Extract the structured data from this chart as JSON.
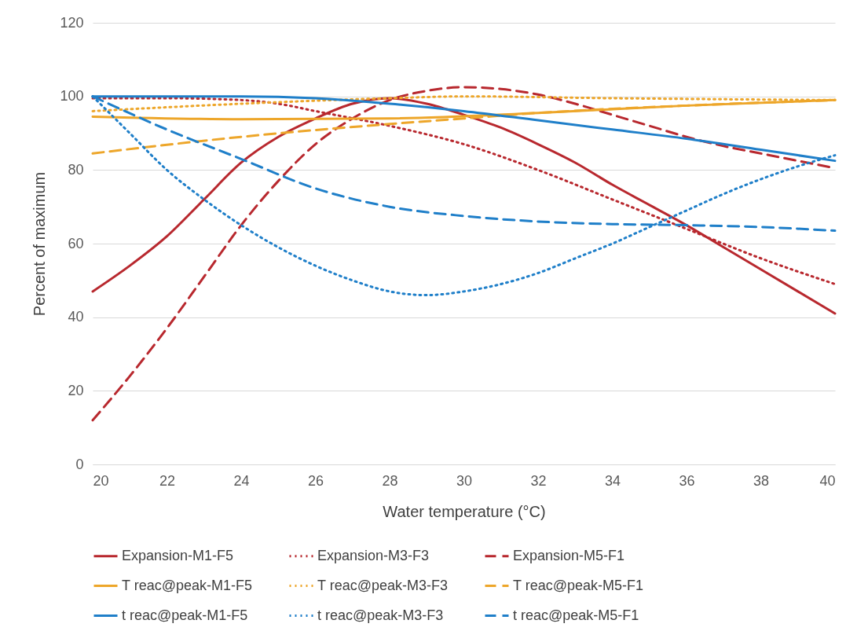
{
  "chart_data": {
    "type": "line",
    "xlabel": "Water temperature (°C)",
    "ylabel": "Percent of maximum",
    "xlim": [
      20,
      40
    ],
    "xticks": [
      20,
      22,
      24,
      26,
      28,
      30,
      32,
      34,
      36,
      38,
      40
    ],
    "ylim": [
      0,
      120
    ],
    "yticks": [
      0,
      20,
      40,
      60,
      80,
      100,
      120
    ],
    "grid": "y",
    "legend": "bottom",
    "marker": "none",
    "series": [
      {
        "name": "Expansion-M1-F5",
        "color": "#b8282e",
        "line_style": "solid",
        "x": [
          20,
          21,
          22,
          23,
          24,
          25,
          26,
          27,
          28,
          29,
          30,
          31,
          32,
          33,
          34,
          35,
          36,
          37,
          38,
          39,
          40
        ],
        "values": [
          47,
          54,
          62,
          72,
          82,
          89,
          94,
          98,
          99.5,
          98,
          95,
          91.5,
          87,
          82,
          76,
          70.5,
          65,
          59,
          53,
          47,
          41
        ]
      },
      {
        "name": "Expansion-M3-F3",
        "color": "#b8282e",
        "line_style": "dotted",
        "x": [
          20,
          22,
          24,
          25,
          26,
          28,
          30,
          32,
          34,
          36,
          38,
          40
        ],
        "values": [
          99.5,
          99.5,
          99,
          98,
          96,
          92,
          87,
          80,
          72,
          64,
          56,
          49
        ]
      },
      {
        "name": "Expansion-M5-F1",
        "color": "#b8282e",
        "line_style": "dashed",
        "x": [
          20,
          21,
          22,
          23,
          24,
          25,
          26,
          27,
          28,
          29,
          30,
          31,
          32,
          33,
          34,
          35,
          36,
          37,
          38,
          39,
          40
        ],
        "values": [
          12,
          24,
          37,
          51,
          65,
          77,
          87,
          94,
          99,
          101.5,
          102.5,
          102,
          100.5,
          98,
          95,
          92,
          89,
          86.5,
          84.5,
          82.5,
          80.5
        ]
      },
      {
        "name": "T reac@peak-M1-F5",
        "color": "#eda62a",
        "line_style": "solid",
        "x": [
          20,
          24,
          28,
          32,
          36,
          40
        ],
        "values": [
          94.5,
          93.8,
          94,
          95.5,
          97.5,
          99
        ]
      },
      {
        "name": "T reac@peak-M3-F3",
        "color": "#eda62a",
        "line_style": "dotted",
        "x": [
          20,
          24,
          28,
          30,
          34,
          40
        ],
        "values": [
          96,
          98,
          99.5,
          100,
          99.5,
          99
        ]
      },
      {
        "name": "T reac@peak-M5-F1",
        "color": "#eda62a",
        "line_style": "dashed",
        "x": [
          20,
          24,
          28,
          30,
          32,
          36,
          40
        ],
        "values": [
          84.5,
          89,
          92.5,
          94,
          95.5,
          97.5,
          99
        ]
      },
      {
        "name": "t reac@peak-M1-F5",
        "color": "#1f7fc9",
        "line_style": "solid",
        "x": [
          20,
          24,
          26,
          28,
          30,
          32,
          34,
          36,
          38,
          40
        ],
        "values": [
          100,
          100,
          99.5,
          98,
          96,
          93.5,
          91,
          88.5,
          85.5,
          82.5
        ]
      },
      {
        "name": "t reac@peak-M3-F3",
        "color": "#1f7fc9",
        "line_style": "dotted",
        "x": [
          20,
          21,
          22,
          23,
          24,
          25,
          26,
          27,
          28,
          29,
          30,
          31,
          32,
          33,
          34,
          35,
          36,
          37,
          38,
          39,
          40
        ],
        "values": [
          100,
          90,
          80,
          72,
          65,
          59,
          54,
          50,
          47,
          46,
          47,
          49,
          52,
          56,
          60,
          64.5,
          69,
          73.5,
          77.5,
          81,
          84
        ]
      },
      {
        "name": "t reac@peak-M5-F1",
        "color": "#1f7fc9",
        "line_style": "dashed",
        "x": [
          20,
          22,
          24,
          26,
          28,
          30,
          32,
          34,
          36,
          38,
          40
        ],
        "values": [
          100,
          91,
          83,
          75,
          70,
          67.5,
          66,
          65.3,
          65,
          64.5,
          63.5
        ]
      }
    ]
  }
}
